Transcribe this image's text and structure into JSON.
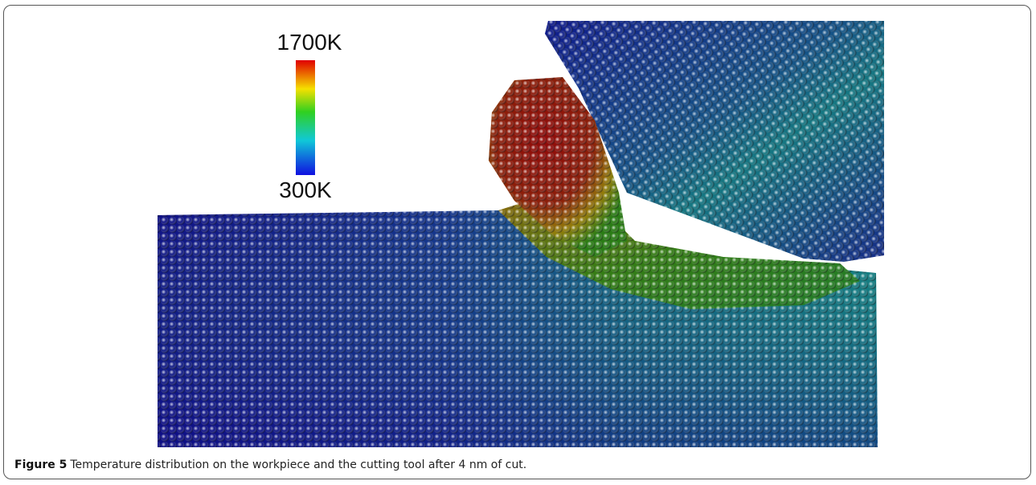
{
  "figure": {
    "colorbar": {
      "max_label": "1700K",
      "min_label": "300K"
    },
    "caption": {
      "label": "Figure 5",
      "text": "Temperature distribution on the workpiece and the cutting tool after 4 nm of cut."
    }
  }
}
